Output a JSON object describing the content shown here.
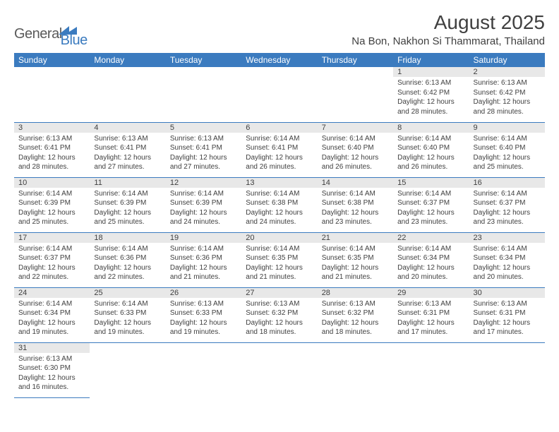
{
  "brand": {
    "general": "General",
    "blue": "Blue"
  },
  "title": "August 2025",
  "location": "Na Bon, Nakhon Si Thammarat, Thailand",
  "weekdays": [
    "Sunday",
    "Monday",
    "Tuesday",
    "Wednesday",
    "Thursday",
    "Friday",
    "Saturday"
  ],
  "colors": {
    "header_bg": "#3b7bbf",
    "header_text": "#ffffff",
    "daynum_bg": "#e8e8e8",
    "text": "#404040",
    "rule": "#3b7bbf"
  },
  "fonts": {
    "title_size_pt": 21,
    "location_size_pt": 11,
    "weekday_size_pt": 9,
    "body_size_pt": 7.5
  },
  "grid": {
    "first_weekday_index": 5,
    "days_in_month": 31
  },
  "days": {
    "1": {
      "sunrise": "6:13 AM",
      "sunset": "6:42 PM",
      "daylight": "12 hours and 28 minutes."
    },
    "2": {
      "sunrise": "6:13 AM",
      "sunset": "6:42 PM",
      "daylight": "12 hours and 28 minutes."
    },
    "3": {
      "sunrise": "6:13 AM",
      "sunset": "6:41 PM",
      "daylight": "12 hours and 28 minutes."
    },
    "4": {
      "sunrise": "6:13 AM",
      "sunset": "6:41 PM",
      "daylight": "12 hours and 27 minutes."
    },
    "5": {
      "sunrise": "6:13 AM",
      "sunset": "6:41 PM",
      "daylight": "12 hours and 27 minutes."
    },
    "6": {
      "sunrise": "6:14 AM",
      "sunset": "6:41 PM",
      "daylight": "12 hours and 26 minutes."
    },
    "7": {
      "sunrise": "6:14 AM",
      "sunset": "6:40 PM",
      "daylight": "12 hours and 26 minutes."
    },
    "8": {
      "sunrise": "6:14 AM",
      "sunset": "6:40 PM",
      "daylight": "12 hours and 26 minutes."
    },
    "9": {
      "sunrise": "6:14 AM",
      "sunset": "6:40 PM",
      "daylight": "12 hours and 25 minutes."
    },
    "10": {
      "sunrise": "6:14 AM",
      "sunset": "6:39 PM",
      "daylight": "12 hours and 25 minutes."
    },
    "11": {
      "sunrise": "6:14 AM",
      "sunset": "6:39 PM",
      "daylight": "12 hours and 25 minutes."
    },
    "12": {
      "sunrise": "6:14 AM",
      "sunset": "6:39 PM",
      "daylight": "12 hours and 24 minutes."
    },
    "13": {
      "sunrise": "6:14 AM",
      "sunset": "6:38 PM",
      "daylight": "12 hours and 24 minutes."
    },
    "14": {
      "sunrise": "6:14 AM",
      "sunset": "6:38 PM",
      "daylight": "12 hours and 23 minutes."
    },
    "15": {
      "sunrise": "6:14 AM",
      "sunset": "6:37 PM",
      "daylight": "12 hours and 23 minutes."
    },
    "16": {
      "sunrise": "6:14 AM",
      "sunset": "6:37 PM",
      "daylight": "12 hours and 23 minutes."
    },
    "17": {
      "sunrise": "6:14 AM",
      "sunset": "6:37 PM",
      "daylight": "12 hours and 22 minutes."
    },
    "18": {
      "sunrise": "6:14 AM",
      "sunset": "6:36 PM",
      "daylight": "12 hours and 22 minutes."
    },
    "19": {
      "sunrise": "6:14 AM",
      "sunset": "6:36 PM",
      "daylight": "12 hours and 21 minutes."
    },
    "20": {
      "sunrise": "6:14 AM",
      "sunset": "6:35 PM",
      "daylight": "12 hours and 21 minutes."
    },
    "21": {
      "sunrise": "6:14 AM",
      "sunset": "6:35 PM",
      "daylight": "12 hours and 21 minutes."
    },
    "22": {
      "sunrise": "6:14 AM",
      "sunset": "6:34 PM",
      "daylight": "12 hours and 20 minutes."
    },
    "23": {
      "sunrise": "6:14 AM",
      "sunset": "6:34 PM",
      "daylight": "12 hours and 20 minutes."
    },
    "24": {
      "sunrise": "6:14 AM",
      "sunset": "6:34 PM",
      "daylight": "12 hours and 19 minutes."
    },
    "25": {
      "sunrise": "6:14 AM",
      "sunset": "6:33 PM",
      "daylight": "12 hours and 19 minutes."
    },
    "26": {
      "sunrise": "6:13 AM",
      "sunset": "6:33 PM",
      "daylight": "12 hours and 19 minutes."
    },
    "27": {
      "sunrise": "6:13 AM",
      "sunset": "6:32 PM",
      "daylight": "12 hours and 18 minutes."
    },
    "28": {
      "sunrise": "6:13 AM",
      "sunset": "6:32 PM",
      "daylight": "12 hours and 18 minutes."
    },
    "29": {
      "sunrise": "6:13 AM",
      "sunset": "6:31 PM",
      "daylight": "12 hours and 17 minutes."
    },
    "30": {
      "sunrise": "6:13 AM",
      "sunset": "6:31 PM",
      "daylight": "12 hours and 17 minutes."
    },
    "31": {
      "sunrise": "6:13 AM",
      "sunset": "6:30 PM",
      "daylight": "12 hours and 16 minutes."
    }
  },
  "labels": {
    "sunrise_prefix": "Sunrise: ",
    "sunset_prefix": "Sunset: ",
    "daylight_prefix": "Daylight: "
  }
}
